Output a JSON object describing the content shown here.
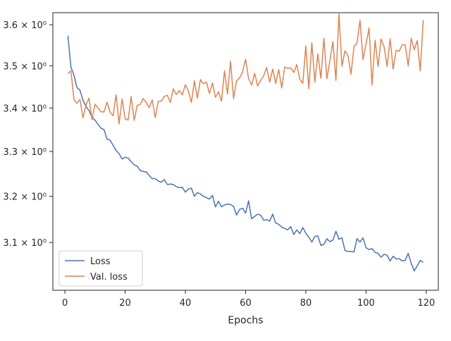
{
  "chart_data": {
    "type": "line",
    "title": "",
    "xlabel": "Epochs",
    "ylabel": "",
    "xlim": [
      -4,
      124
    ],
    "ylim": [
      3.0,
      3.63
    ],
    "y_scale": "log",
    "grid": false,
    "legend_position": "lower-left",
    "x_ticks": [
      0,
      20,
      40,
      60,
      80,
      100,
      120
    ],
    "x_tick_labels": [
      "0",
      "20",
      "40",
      "60",
      "80",
      "100",
      "120"
    ],
    "y_ticks": [
      3.1,
      3.2,
      3.3,
      3.4,
      3.5,
      3.6
    ],
    "y_tick_labels": [
      "3.1 × 10⁰",
      "3.2 × 10⁰",
      "3.3 × 10⁰",
      "3.4 × 10⁰",
      "3.5 × 10⁰",
      "3.6 × 10⁰"
    ],
    "x": [
      1,
      2,
      3,
      4,
      5,
      6,
      7,
      8,
      9,
      10,
      11,
      12,
      13,
      14,
      15,
      16,
      17,
      18,
      19,
      20,
      21,
      22,
      23,
      24,
      25,
      26,
      27,
      28,
      29,
      30,
      31,
      32,
      33,
      34,
      35,
      36,
      37,
      38,
      39,
      40,
      41,
      42,
      43,
      44,
      45,
      46,
      47,
      48,
      49,
      50,
      51,
      52,
      53,
      54,
      55,
      56,
      57,
      58,
      59,
      60,
      61,
      62,
      63,
      64,
      65,
      66,
      67,
      68,
      69,
      70,
      71,
      72,
      73,
      74,
      75,
      76,
      77,
      78,
      79,
      80,
      81,
      82,
      83,
      84,
      85,
      86,
      87,
      88,
      89,
      90,
      91,
      92,
      93,
      94,
      95,
      96,
      97,
      98,
      99,
      100,
      101,
      102,
      103,
      104,
      105,
      106,
      107,
      108,
      109,
      110,
      111,
      112,
      113,
      114,
      115,
      116,
      117,
      118,
      119
    ],
    "series": [
      {
        "name": "Loss",
        "color": "#4c72b0",
        "values": [
          3.573,
          3.497,
          3.478,
          3.448,
          3.442,
          3.418,
          3.404,
          3.394,
          3.378,
          3.372,
          3.362,
          3.353,
          3.35,
          3.328,
          3.326,
          3.314,
          3.302,
          3.295,
          3.283,
          3.287,
          3.285,
          3.277,
          3.27,
          3.267,
          3.257,
          3.255,
          3.254,
          3.246,
          3.239,
          3.239,
          3.234,
          3.231,
          3.237,
          3.226,
          3.227,
          3.226,
          3.221,
          3.219,
          3.22,
          3.209,
          3.216,
          3.218,
          3.2,
          3.208,
          3.205,
          3.2,
          3.197,
          3.194,
          3.202,
          3.177,
          3.189,
          3.177,
          3.181,
          3.183,
          3.182,
          3.178,
          3.159,
          3.171,
          3.174,
          3.163,
          3.19,
          3.151,
          3.156,
          3.161,
          3.159,
          3.148,
          3.149,
          3.146,
          3.161,
          3.142,
          3.139,
          3.133,
          3.13,
          3.127,
          3.134,
          3.117,
          3.127,
          3.119,
          3.132,
          3.12,
          3.111,
          3.101,
          3.113,
          3.114,
          3.094,
          3.096,
          3.108,
          3.102,
          3.105,
          3.124,
          3.107,
          3.11,
          3.083,
          3.081,
          3.081,
          3.08,
          3.108,
          3.101,
          3.11,
          3.089,
          3.085,
          3.087,
          3.079,
          3.077,
          3.069,
          3.075,
          3.073,
          3.061,
          3.071,
          3.065,
          3.066,
          3.061,
          3.062,
          3.077,
          3.056,
          3.04,
          3.051,
          3.062,
          3.058
        ]
      },
      {
        "name": "Val. loss",
        "color": "#dd8452",
        "values": [
          3.481,
          3.488,
          3.42,
          3.411,
          3.42,
          3.377,
          3.407,
          3.423,
          3.373,
          3.409,
          3.4,
          3.391,
          3.391,
          3.414,
          3.39,
          3.382,
          3.431,
          3.363,
          3.421,
          3.375,
          3.372,
          3.427,
          3.371,
          3.406,
          3.408,
          3.422,
          3.413,
          3.401,
          3.419,
          3.378,
          3.416,
          3.416,
          3.427,
          3.43,
          3.413,
          3.445,
          3.432,
          3.441,
          3.431,
          3.455,
          3.44,
          3.413,
          3.464,
          3.423,
          3.467,
          3.457,
          3.461,
          3.434,
          3.459,
          3.425,
          3.438,
          3.416,
          3.488,
          3.433,
          3.511,
          3.422,
          3.464,
          3.471,
          3.485,
          3.516,
          3.469,
          3.454,
          3.482,
          3.452,
          3.465,
          3.476,
          3.496,
          3.461,
          3.492,
          3.458,
          3.491,
          3.447,
          3.497,
          3.494,
          3.495,
          3.484,
          3.503,
          3.468,
          3.458,
          3.548,
          3.445,
          3.556,
          3.461,
          3.529,
          3.47,
          3.567,
          3.469,
          3.513,
          3.559,
          3.465,
          3.627,
          3.499,
          3.536,
          3.525,
          3.48,
          3.546,
          3.555,
          3.611,
          3.515,
          3.553,
          3.592,
          3.454,
          3.562,
          3.498,
          3.565,
          3.546,
          3.498,
          3.566,
          3.492,
          3.537,
          3.535,
          3.551,
          3.551,
          3.5,
          3.567,
          3.539,
          3.561,
          3.488,
          3.612
        ]
      }
    ]
  }
}
